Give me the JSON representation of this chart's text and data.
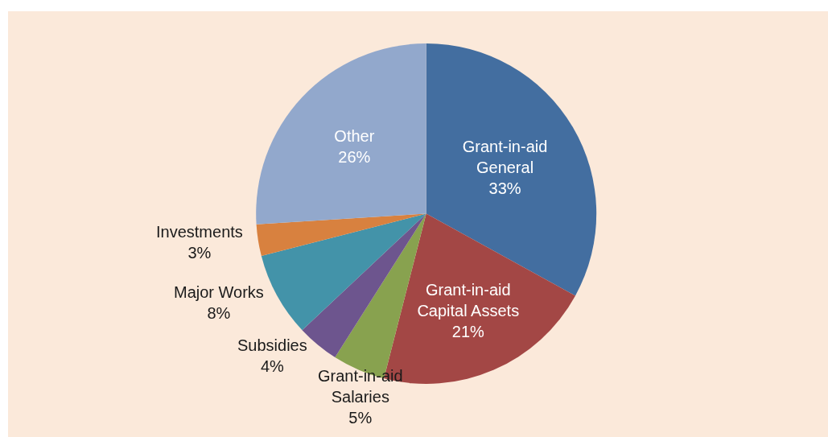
{
  "chart_data": {
    "type": "pie",
    "categories": [
      "Grant-in-aid General",
      "Grant-in-aid Capital Assets",
      "Grant-in-aid Salaries",
      "Subsidies",
      "Major Works",
      "Investments",
      "Other"
    ],
    "values": [
      33,
      21,
      5,
      4,
      8,
      3,
      26
    ],
    "value_labels": [
      "33%",
      "21%",
      "5%",
      "4%",
      "8%",
      "3%",
      "26%"
    ],
    "colors": [
      "#436ea0",
      "#a34745",
      "#88a24f",
      "#6d558e",
      "#4393a9",
      "#d8813f",
      "#92a8cc"
    ],
    "legend": false
  }
}
